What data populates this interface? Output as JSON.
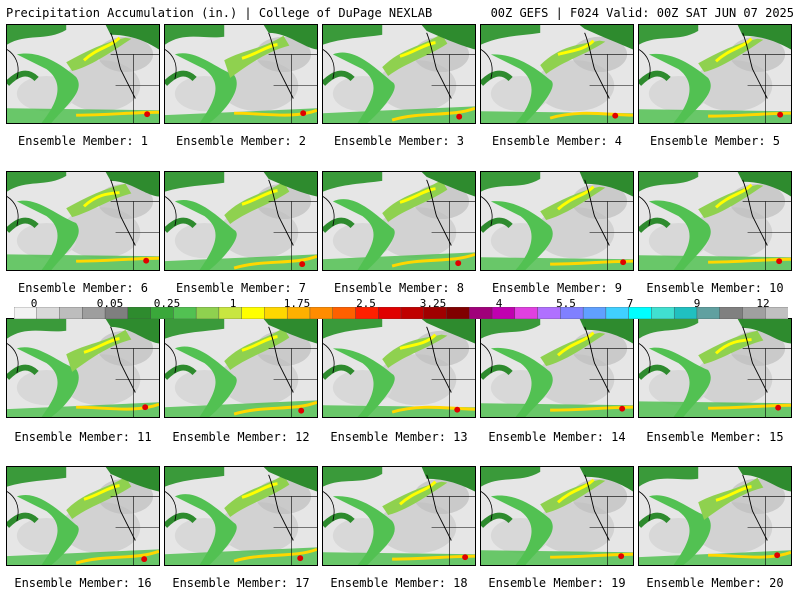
{
  "header": {
    "left": "Precipitation Accumulation (in.) | College of DuPage NEXLAB",
    "right": "00Z GEFS | F024 Valid: 00Z SAT JUN 07 2025"
  },
  "members": [
    "Ensemble Member: 1",
    "Ensemble Member: 2",
    "Ensemble Member: 3",
    "Ensemble Member: 4",
    "Ensemble Member: 5",
    "Ensemble Member: 6",
    "Ensemble Member: 7",
    "Ensemble Member: 8",
    "Ensemble Member: 9",
    "Ensemble Member: 10",
    "Ensemble Member: 11",
    "Ensemble Member: 12",
    "Ensemble Member: 13",
    "Ensemble Member: 14",
    "Ensemble Member: 15",
    "Ensemble Member: 16",
    "Ensemble Member: 17",
    "Ensemble Member: 18",
    "Ensemble Member: 19",
    "Ensemble Member: 20"
  ],
  "colorbar": {
    "ticks": [
      "0",
      "0.05",
      "0.25",
      "1",
      "1.75",
      "2.5",
      "3.25",
      "4",
      "5.5",
      "7",
      "9",
      "12"
    ],
    "colors": [
      "#f2f2f2",
      "#d9d9d9",
      "#bdbdbd",
      "#9e9e9e",
      "#7f7f7f",
      "#2e8b2e",
      "#3aa83a",
      "#52c152",
      "#8fd14f",
      "#c8e640",
      "#ffff00",
      "#ffd700",
      "#ffb000",
      "#ff8c00",
      "#ff6000",
      "#ff2000",
      "#e00000",
      "#c00000",
      "#a00000",
      "#800000",
      "#a0007a",
      "#c000b0",
      "#e040e0",
      "#b070ff",
      "#8080ff",
      "#60a0ff",
      "#40d0ff",
      "#00ffff",
      "#40e0d0",
      "#20c0c0",
      "#60a0a0",
      "#808080",
      "#a0a0a0",
      "#c0c0c0"
    ]
  }
}
